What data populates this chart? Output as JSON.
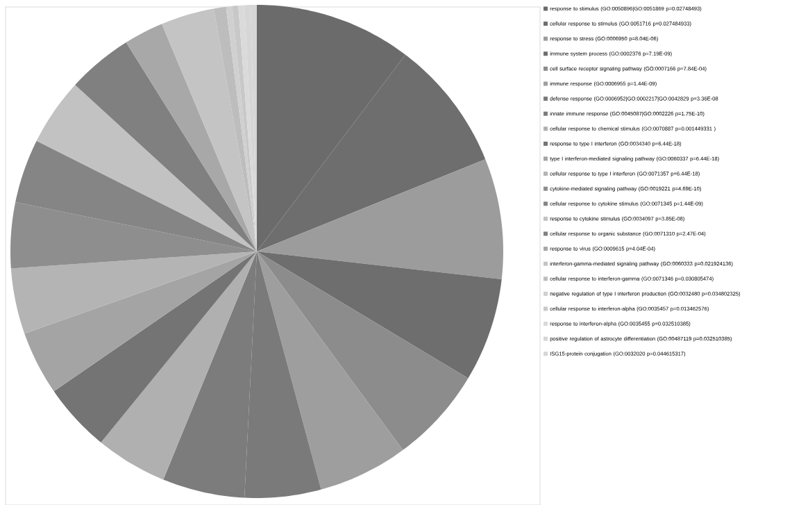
{
  "chart_data": {
    "type": "pie",
    "legend": "right",
    "categories": [
      "response to stimulus  (GO:0050896|GO:0051869  p=0.02748493)",
      "cellular response to stimulus (GO:0051716 p=0.027484933)",
      "response to stress (GO:0006950 p=8.04E-06)",
      "immune system process (GO:0002376 p=7.19E-09)",
      "cell surface receptor signaling pathway (GO:0007166 p=7.84E-04)",
      "immune response (GO:0006955  p=1.44E-09)",
      "defense response (GO:0006952|GO:0002217|GO:0042829  p=3.36E-08",
      "innate immune response (GO:0045087|GO:0002226  p=1.75E-10)",
      "cellular response to chemical stimulus (GO:0070887 p=0.001449331 )",
      "response to type I interferon (GO:0034340  p=6.44E-18)",
      "type I interferon-mediated signaling pathway (GO:0060337  p=6.44E-18)",
      "cellular response to type I interferon (GO:0071357  p=6.44E-18)",
      "cytokine-mediated signaling pathway (GO:0019221 p=4.69E-10)",
      "cellular response to cytokine stimulus (GO:0071345 p=1.44E-09)",
      "response to cytokine stimulus (GO:0034097 p=3.85E-08)",
      "cellular response to organic substance  (GO:0071310 p=2.47E-04)",
      "response to virus (GO:0009615 p=4.04E-04)",
      "interferon-gamma-mediated signaling pathway (GO:0060333 p=0.021924136)",
      "cellular response to interferon-gamma (GO:0071346 p=0.030805474)",
      "negative regulation of type I interferon production (GO:0032480 p=0.034802325)",
      "cellular response to interferon-alpha (GO:0035457 p=0.013462576)",
      "response to interferon-alpha (GO:0035455 p=0.032510385)",
      "positive regulation of astrocyte differentiation (GO:00487119 p=0.032510385)",
      "ISG15-protein conjugation (GO:0032020  p=0.044615317)"
    ],
    "values": [
      10.3,
      8.6,
      7.9,
      6.8,
      6.3,
      5.9,
      5.0,
      5.4,
      4.7,
      4.5,
      4.2,
      4.3,
      4.3,
      4.2,
      4.4,
      4.3,
      2.6,
      3.5,
      0.8,
      0.4,
      0.4,
      0.4,
      0.4,
      0.4
    ],
    "colors": [
      "#6b6b6b",
      "#6e6e6e",
      "#9c9c9c",
      "#6e6e6e",
      "#8c8c8c",
      "#9e9e9e",
      "#7a7a7a",
      "#7c7c7c",
      "#b0b0b0",
      "#747474",
      "#a4a4a4",
      "#b4b4b4",
      "#8e8e8e",
      "#858585",
      "#c2c2c2",
      "#808080",
      "#a8a8a8",
      "#c4c4c4",
      "#bdbdbd",
      "#d0d0d0",
      "#c8c8c8",
      "#dadada",
      "#d6d6d6",
      "#d6d6d6"
    ]
  }
}
